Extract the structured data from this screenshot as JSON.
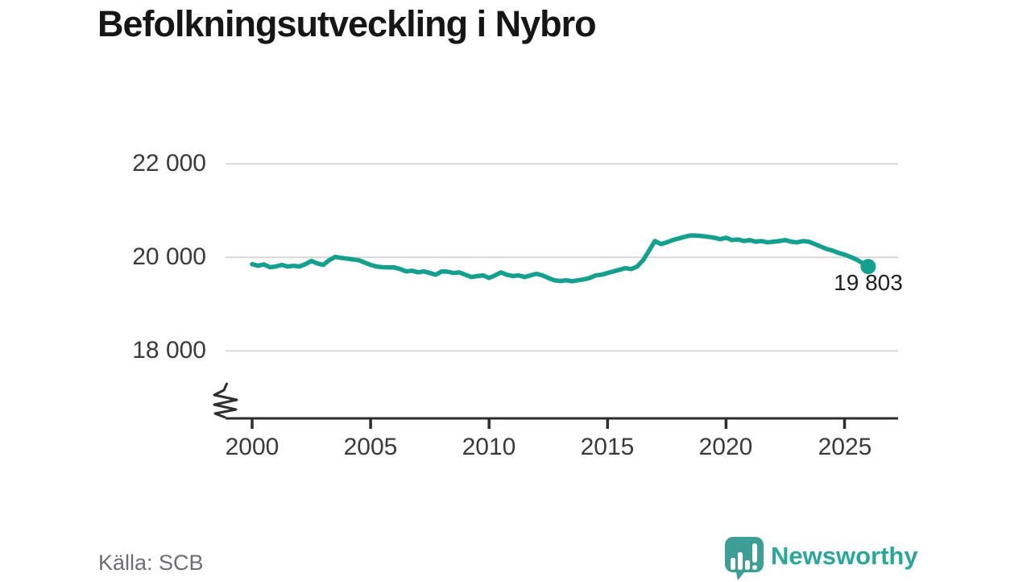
{
  "header": {
    "title": "Befolkningsutveckling i Nybro"
  },
  "footer": {
    "source": "Källa: SCB",
    "brand_name": "Newsworthy"
  },
  "colors": {
    "line": "#13a08e",
    "grid": "#d8d8d8",
    "axis": "#2d2d2d",
    "tick_text": "#3a3a3a",
    "title_text": "#161616",
    "source_text": "#6d6d75",
    "brand_text": "#2aa79b",
    "brand_icon": "#3d9e96"
  },
  "chart_data": {
    "type": "line",
    "title": "Befolkningsutveckling i Nybro",
    "xlabel": "",
    "ylabel": "",
    "x_ticks": [
      2000,
      2005,
      2010,
      2015,
      2020,
      2025
    ],
    "y_ticks": [
      18000,
      20000,
      22000
    ],
    "y_tick_labels": [
      "18 000",
      "20 000",
      "22 000"
    ],
    "xlim": [
      1998.9,
      2027.3
    ],
    "ylim": [
      16550,
      22550
    ],
    "grid": "horizontal-only",
    "axis_break_bottom_left": true,
    "legend": "none",
    "latest_label": "19 803",
    "latest_value": 19803,
    "series": [
      {
        "name": "Befolkning i Nybro",
        "points": [
          [
            2000.0,
            19855
          ],
          [
            2000.25,
            19820
          ],
          [
            2000.5,
            19850
          ],
          [
            2000.75,
            19790
          ],
          [
            2001.0,
            19805
          ],
          [
            2001.25,
            19840
          ],
          [
            2001.5,
            19805
          ],
          [
            2001.75,
            19820
          ],
          [
            2002.0,
            19805
          ],
          [
            2002.25,
            19855
          ],
          [
            2002.5,
            19925
          ],
          [
            2002.75,
            19870
          ],
          [
            2003.0,
            19840
          ],
          [
            2003.25,
            19940
          ],
          [
            2003.5,
            20010
          ],
          [
            2003.75,
            19990
          ],
          [
            2004.0,
            19975
          ],
          [
            2004.25,
            19955
          ],
          [
            2004.5,
            19940
          ],
          [
            2004.75,
            19890
          ],
          [
            2005.0,
            19840
          ],
          [
            2005.25,
            19805
          ],
          [
            2005.5,
            19790
          ],
          [
            2005.75,
            19785
          ],
          [
            2006.0,
            19785
          ],
          [
            2006.25,
            19750
          ],
          [
            2006.5,
            19700
          ],
          [
            2006.75,
            19715
          ],
          [
            2007.0,
            19680
          ],
          [
            2007.25,
            19700
          ],
          [
            2007.5,
            19665
          ],
          [
            2007.75,
            19630
          ],
          [
            2008.0,
            19700
          ],
          [
            2008.25,
            19695
          ],
          [
            2008.5,
            19665
          ],
          [
            2008.75,
            19680
          ],
          [
            2009.0,
            19630
          ],
          [
            2009.25,
            19580
          ],
          [
            2009.5,
            19600
          ],
          [
            2009.75,
            19615
          ],
          [
            2010.0,
            19560
          ],
          [
            2010.25,
            19615
          ],
          [
            2010.5,
            19680
          ],
          [
            2010.75,
            19630
          ],
          [
            2011.0,
            19600
          ],
          [
            2011.25,
            19615
          ],
          [
            2011.5,
            19580
          ],
          [
            2011.75,
            19615
          ],
          [
            2012.0,
            19650
          ],
          [
            2012.25,
            19615
          ],
          [
            2012.5,
            19560
          ],
          [
            2012.75,
            19510
          ],
          [
            2013.0,
            19495
          ],
          [
            2013.25,
            19510
          ],
          [
            2013.5,
            19490
          ],
          [
            2013.75,
            19510
          ],
          [
            2014.0,
            19530
          ],
          [
            2014.25,
            19560
          ],
          [
            2014.5,
            19615
          ],
          [
            2014.75,
            19630
          ],
          [
            2015.0,
            19665
          ],
          [
            2015.25,
            19700
          ],
          [
            2015.5,
            19735
          ],
          [
            2015.75,
            19770
          ],
          [
            2016.0,
            19750
          ],
          [
            2016.25,
            19805
          ],
          [
            2016.5,
            19940
          ],
          [
            2016.75,
            20145
          ],
          [
            2017.0,
            20350
          ],
          [
            2017.25,
            20285
          ],
          [
            2017.5,
            20320
          ],
          [
            2017.75,
            20370
          ],
          [
            2018.0,
            20405
          ],
          [
            2018.25,
            20440
          ],
          [
            2018.5,
            20470
          ],
          [
            2018.75,
            20465
          ],
          [
            2019.0,
            20455
          ],
          [
            2019.25,
            20440
          ],
          [
            2019.5,
            20420
          ],
          [
            2019.75,
            20390
          ],
          [
            2020.0,
            20420
          ],
          [
            2020.25,
            20370
          ],
          [
            2020.5,
            20385
          ],
          [
            2020.75,
            20350
          ],
          [
            2021.0,
            20370
          ],
          [
            2021.25,
            20335
          ],
          [
            2021.5,
            20350
          ],
          [
            2021.75,
            20320
          ],
          [
            2022.0,
            20335
          ],
          [
            2022.25,
            20350
          ],
          [
            2022.5,
            20370
          ],
          [
            2022.75,
            20335
          ],
          [
            2023.0,
            20320
          ],
          [
            2023.25,
            20350
          ],
          [
            2023.5,
            20335
          ],
          [
            2023.75,
            20285
          ],
          [
            2024.0,
            20230
          ],
          [
            2024.25,
            20180
          ],
          [
            2024.5,
            20145
          ],
          [
            2024.75,
            20095
          ],
          [
            2025.0,
            20060
          ],
          [
            2025.25,
            20010
          ],
          [
            2025.5,
            19955
          ],
          [
            2025.75,
            19880
          ],
          [
            2026.0,
            19803
          ]
        ]
      }
    ]
  }
}
